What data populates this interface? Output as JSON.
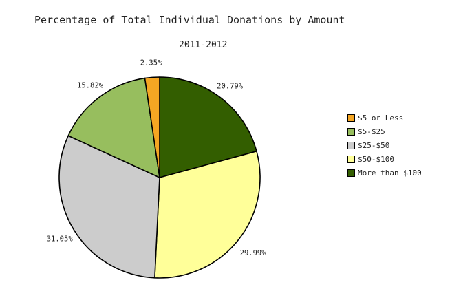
{
  "chart_data": {
    "type": "pie",
    "title": "Percentage of Total Individual Donations by Amount",
    "subtitle": "2011-2012",
    "legend_position": "right",
    "slices": [
      {
        "name": "$5 or Less",
        "value": 2.35,
        "label": "2.35%",
        "color": "#f5a623"
      },
      {
        "name": "$5-$25",
        "value": 15.82,
        "label": "15.82%",
        "color": "#97be5e"
      },
      {
        "name": "$25-$50",
        "value": 31.05,
        "label": "31.05%",
        "color": "#cccccc"
      },
      {
        "name": "$50-$100",
        "value": 29.99,
        "label": "29.99%",
        "color": "#ffff99"
      },
      {
        "name": "More than $100",
        "value": 20.79,
        "label": "20.79%",
        "color": "#335e00"
      }
    ]
  }
}
